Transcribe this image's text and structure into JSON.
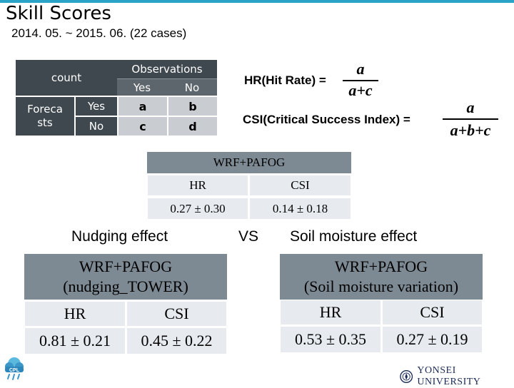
{
  "page": {
    "title": "Skill Scores",
    "subtitle": "2014. 05. ~ 2015. 06. (22 cases)"
  },
  "contingency": {
    "count_label": "count",
    "observations_label": "Observations",
    "forecasts_label": "Foreca sts",
    "yes": "Yes",
    "no": "No",
    "a": "a",
    "b": "b",
    "c": "c",
    "d": "d"
  },
  "formulas": {
    "hr_label": "HR(Hit Rate) =",
    "hr_num": "a",
    "hr_den": "a+c",
    "csi_label": "CSI(Critical Success Index) =",
    "csi_num": "a",
    "csi_den": "a+b+c"
  },
  "top_table": {
    "header": "WRF+PAFOG",
    "col_hr": "HR",
    "col_csi": "CSI",
    "hr_value": "0.27 ± 0.30",
    "csi_value": "0.14 ± 0.18"
  },
  "labels": {
    "nudging_effect": "Nudging effect",
    "vs": "VS",
    "soil_effect": "Soil moisture effect"
  },
  "nudging_table": {
    "header_line1": "WRF+PAFOG",
    "header_line2": "(nudging_TOWER)",
    "col_hr": "HR",
    "col_csi": "CSI",
    "hr_value": "0.81 ± 0.21",
    "csi_value": "0.45 ± 0.22"
  },
  "soil_table": {
    "header_line1": "WRF+PAFOG",
    "header_line2": "(Soil moisture variation)",
    "col_hr": "HR",
    "col_csi": "CSI",
    "hr_value": "0.53 ± 0.35",
    "csi_value": "0.27 ± 0.19"
  },
  "footer": {
    "cpl_logo_text": "CPL",
    "university": "YONSEI UNIVERSITY"
  },
  "colors": {
    "accent": "#2aa3c9",
    "dark_cell": "#3f484f",
    "table_header": "#7d8a94",
    "table_cell": "#e7ebef"
  }
}
